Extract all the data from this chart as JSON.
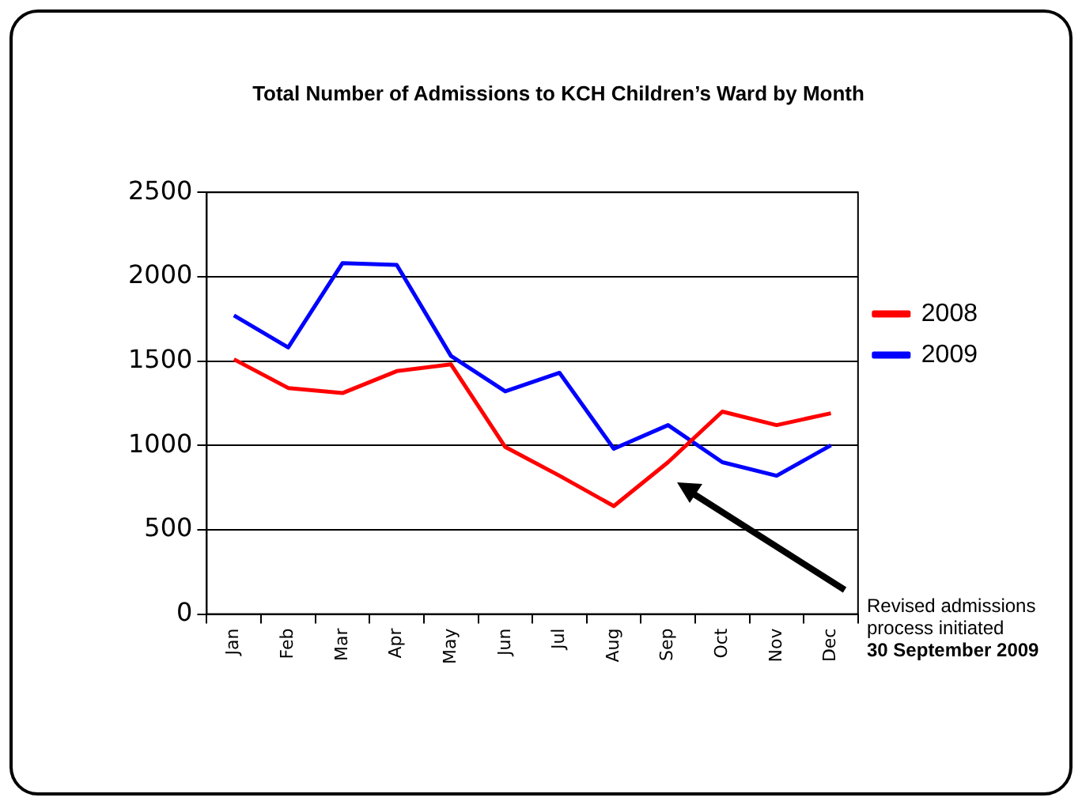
{
  "chart_data": {
    "type": "line",
    "title": "Total Number of Admissions to KCH Children’s Ward by Month",
    "categories": [
      "Jan",
      "Feb",
      "Mar",
      "Apr",
      "May",
      "Jun",
      "Jul",
      "Aug",
      "Sep",
      "Oct",
      "Nov",
      "Dec"
    ],
    "series": [
      {
        "name": "2008",
        "color": "#ff0000",
        "values": [
          1510,
          1340,
          1310,
          1440,
          1480,
          990,
          820,
          640,
          900,
          1200,
          1120,
          1190
        ]
      },
      {
        "name": "2009",
        "color": "#0000ff",
        "values": [
          1770,
          1580,
          2080,
          2070,
          1530,
          1320,
          1430,
          980,
          1120,
          900,
          820,
          1000
        ]
      }
    ],
    "ylim": [
      0,
      2500
    ],
    "yticks": [
      0,
      500,
      1000,
      1500,
      2000,
      2500
    ],
    "grid": "y",
    "legend": "right",
    "marker": "none",
    "line_style": "solid",
    "annotations": [
      "Revised admissions process initiated",
      "30 September 2009"
    ]
  }
}
